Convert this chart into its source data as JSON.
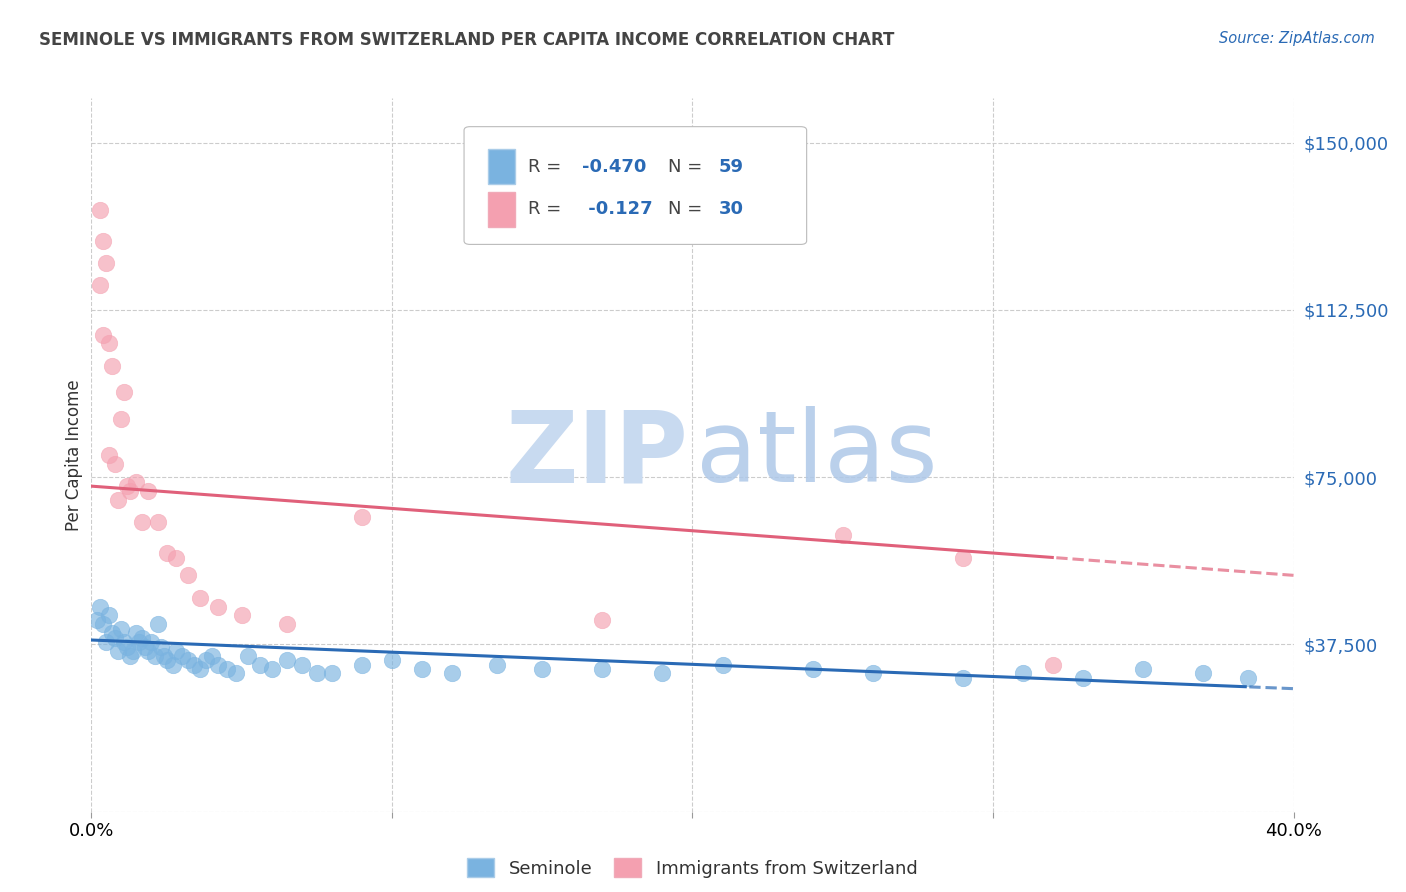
{
  "title": "SEMINOLE VS IMMIGRANTS FROM SWITZERLAND PER CAPITA INCOME CORRELATION CHART",
  "source": "Source: ZipAtlas.com",
  "ylabel": "Per Capita Income",
  "xlim": [
    0.0,
    0.4
  ],
  "ylim": [
    0,
    160000
  ],
  "yticks": [
    0,
    37500,
    75000,
    112500,
    150000
  ],
  "ytick_labels": [
    "",
    "$37,500",
    "$75,000",
    "$112,500",
    "$150,000"
  ],
  "xticks": [
    0.0,
    0.1,
    0.2,
    0.3,
    0.4
  ],
  "xtick_labels": [
    "0.0%",
    "",
    "",
    "",
    "40.0%"
  ],
  "background_color": "#ffffff",
  "grid_color": "#cccccc",
  "legend_r1": "-0.470",
  "legend_n1": "59",
  "legend_r2": "-0.127",
  "legend_n2": "30",
  "blue_color": "#7ab3e0",
  "pink_color": "#f4a0b0",
  "trendline_blue": "#2a6ab5",
  "trendline_pink": "#e0607a",
  "seminole_x": [
    0.002,
    0.003,
    0.004,
    0.005,
    0.006,
    0.007,
    0.008,
    0.009,
    0.01,
    0.011,
    0.012,
    0.013,
    0.014,
    0.015,
    0.016,
    0.017,
    0.018,
    0.019,
    0.02,
    0.021,
    0.022,
    0.023,
    0.024,
    0.025,
    0.027,
    0.028,
    0.03,
    0.032,
    0.034,
    0.036,
    0.038,
    0.04,
    0.042,
    0.045,
    0.048,
    0.052,
    0.056,
    0.06,
    0.065,
    0.07,
    0.075,
    0.08,
    0.09,
    0.1,
    0.11,
    0.12,
    0.135,
    0.15,
    0.17,
    0.19,
    0.21,
    0.24,
    0.26,
    0.29,
    0.31,
    0.33,
    0.35,
    0.37,
    0.385
  ],
  "seminole_y": [
    43000,
    46000,
    42000,
    38000,
    44000,
    40000,
    39000,
    36000,
    41000,
    38000,
    37000,
    35000,
    36000,
    40000,
    38000,
    39000,
    37000,
    36000,
    38000,
    35000,
    42000,
    37000,
    35000,
    34000,
    33000,
    36000,
    35000,
    34000,
    33000,
    32000,
    34000,
    35000,
    33000,
    32000,
    31000,
    35000,
    33000,
    32000,
    34000,
    33000,
    31000,
    31000,
    33000,
    34000,
    32000,
    31000,
    33000,
    32000,
    32000,
    31000,
    33000,
    32000,
    31000,
    30000,
    31000,
    30000,
    32000,
    31000,
    30000
  ],
  "swiss_x": [
    0.003,
    0.004,
    0.005,
    0.006,
    0.007,
    0.008,
    0.009,
    0.01,
    0.011,
    0.012,
    0.013,
    0.015,
    0.017,
    0.019,
    0.022,
    0.025,
    0.028,
    0.032,
    0.036,
    0.042,
    0.05,
    0.065,
    0.09,
    0.17,
    0.25,
    0.32,
    0.003,
    0.004,
    0.006,
    0.29
  ],
  "swiss_y": [
    135000,
    128000,
    123000,
    105000,
    100000,
    78000,
    70000,
    88000,
    94000,
    73000,
    72000,
    74000,
    65000,
    72000,
    65000,
    58000,
    57000,
    53000,
    48000,
    46000,
    44000,
    42000,
    66000,
    43000,
    62000,
    33000,
    118000,
    107000,
    80000,
    57000
  ]
}
